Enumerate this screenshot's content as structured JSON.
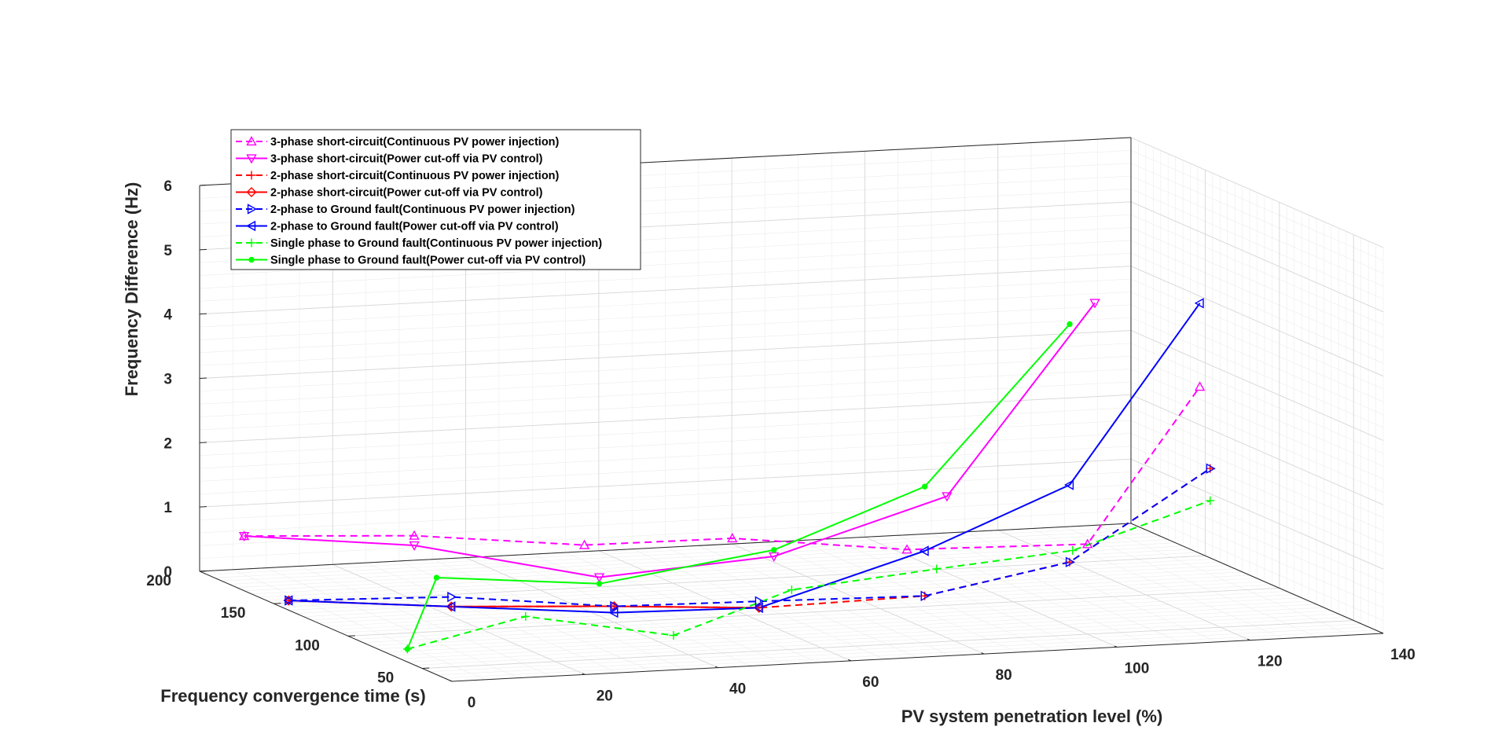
{
  "chart_data": {
    "type": "line",
    "projection": "3d",
    "xlabel": "PV system penetration level (%)",
    "ylabel": "Frequency convergence time (s)",
    "zlabel": "Frequency Difference (Hz)",
    "xlim": [
      0,
      140
    ],
    "ylim": [
      30,
      200
    ],
    "zlim": [
      0,
      6
    ],
    "x_ticks": [
      0,
      20,
      40,
      60,
      80,
      100,
      120,
      140
    ],
    "y_ticks": [
      50,
      100,
      150,
      200
    ],
    "z_ticks": [
      0,
      1,
      2,
      3,
      4,
      5,
      6
    ],
    "grid": true,
    "legend_position": "top-left",
    "series": [
      {
        "name": "3-phase short-circuit(Continuous PV power injection)",
        "color": "#ff00ff",
        "dash": true,
        "marker": "triangle-up",
        "points": [
          [
            0,
            170,
            0.85
          ],
          [
            20,
            145,
            1.0
          ],
          [
            40,
            120,
            1.0
          ],
          [
            60,
            110,
            1.1
          ],
          [
            80,
            82,
            1.1
          ],
          [
            100,
            50,
            1.4
          ],
          [
            118,
            55,
            3.7
          ]
        ]
      },
      {
        "name": "3-phase short-circuit(Power cut-off via PV control)",
        "color": "#ff00ff",
        "dash": false,
        "marker": "triangle-down",
        "points": [
          [
            0,
            170,
            0.85
          ],
          [
            20,
            145,
            0.85
          ],
          [
            40,
            110,
            0.6
          ],
          [
            60,
            82,
            1.1
          ],
          [
            80,
            55,
            2.2
          ],
          [
            100,
            45,
            5.2
          ]
        ]
      },
      {
        "name": "2-phase short-circuit(Continuous PV power injection)",
        "color": "#ff0000",
        "dash": true,
        "marker": "plus",
        "points": [
          [
            0,
            140,
            0.15
          ],
          [
            20,
            120,
            0.15
          ],
          [
            40,
            100,
            0.25
          ],
          [
            60,
            92,
            0.2
          ],
          [
            80,
            70,
            0.5
          ],
          [
            100,
            62,
            1.0
          ],
          [
            118,
            48,
            2.5
          ]
        ]
      },
      {
        "name": "2-phase short-circuit(Power cut-off via PV control)",
        "color": "#ff0000",
        "dash": false,
        "marker": "diamond",
        "points": [
          [
            0,
            140,
            0.15
          ],
          [
            20,
            120,
            0.15
          ],
          [
            40,
            100,
            0.25
          ],
          [
            60,
            92,
            0.2
          ]
        ]
      },
      {
        "name": "2-phase to Ground fault(Continuous PV power injection)",
        "color": "#0000ff",
        "dash": true,
        "marker": "triangle-right",
        "points": [
          [
            0,
            140,
            0.15
          ],
          [
            20,
            120,
            0.3
          ],
          [
            40,
            100,
            0.25
          ],
          [
            60,
            92,
            0.3
          ],
          [
            80,
            70,
            0.5
          ],
          [
            100,
            62,
            1.0
          ],
          [
            118,
            48,
            2.5
          ]
        ]
      },
      {
        "name": "2-phase to Ground fault(Power cut-off via PV control)",
        "color": "#0000ff",
        "dash": false,
        "marker": "triangle-left",
        "points": [
          [
            0,
            140,
            0.15
          ],
          [
            20,
            120,
            0.15
          ],
          [
            40,
            100,
            0.15
          ],
          [
            60,
            92,
            0.2
          ],
          [
            80,
            70,
            1.2
          ],
          [
            100,
            62,
            2.2
          ],
          [
            118,
            55,
            5.0
          ]
        ]
      },
      {
        "name": "Single phase to Ground fault(Continuous PV power injection)",
        "color": "#00ff00",
        "dash": true,
        "marker": "plus",
        "points": [
          [
            0,
            60,
            0.2
          ],
          [
            20,
            70,
            0.5
          ],
          [
            40,
            60,
            0.2
          ],
          [
            60,
            70,
            0.7
          ],
          [
            80,
            62,
            1.0
          ],
          [
            100,
            60,
            1.2
          ],
          [
            118,
            48,
            2.0
          ]
        ]
      },
      {
        "name": "Single phase to Ground fault(Power cut-off via PV control)",
        "color": "#00ff00",
        "dash": false,
        "marker": "dot",
        "points": [
          [
            0,
            60,
            0.2
          ],
          [
            20,
            130,
            0.5
          ],
          [
            40,
            110,
            0.5
          ],
          [
            60,
            82,
            1.2
          ],
          [
            80,
            70,
            2.2
          ],
          [
            100,
            62,
            4.7
          ]
        ]
      }
    ]
  }
}
